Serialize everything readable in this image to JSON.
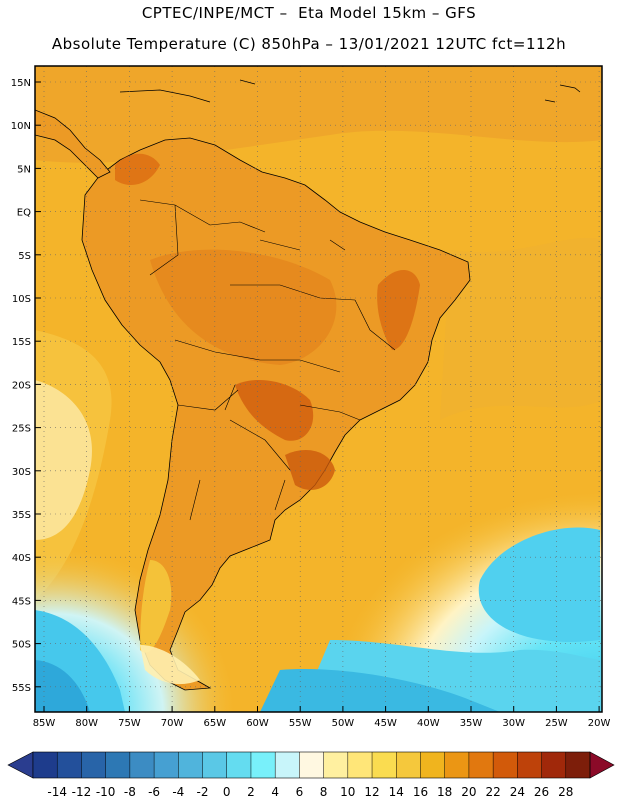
{
  "header": {
    "line1": "CPTEC/INPE/MCT –  Eta Model 15km – GFS",
    "line2": "Absolute Temperature (C) 850hPa – 13/01/2021 12UTC fct=112h"
  },
  "axes": {
    "lat_labels": [
      "15N",
      "10N",
      "5N",
      "EQ",
      "5S",
      "10S",
      "15S",
      "20S",
      "25S",
      "30S",
      "35S",
      "40S",
      "45S",
      "50S",
      "55S"
    ],
    "lon_labels": [
      "85W",
      "80W",
      "75W",
      "70W",
      "65W",
      "60W",
      "55W",
      "50W",
      "45W",
      "40W",
      "35W",
      "30W",
      "25W",
      "20W"
    ]
  },
  "colorbar": {
    "labels": [
      "-14",
      "-12",
      "-10",
      "-8",
      "-6",
      "-4",
      "-2",
      "0",
      "2",
      "4",
      "6",
      "8",
      "10",
      "12",
      "14",
      "16",
      "18",
      "20",
      "22",
      "24",
      "26",
      "28"
    ],
    "colors": [
      "#1e3c8c",
      "#23509b",
      "#2864a8",
      "#2d78b4",
      "#3c8cc3",
      "#46a0d2",
      "#50b4dc",
      "#5ac8e6",
      "#64dcf0",
      "#78f0fa",
      "#c8f5fa",
      "#fff8e1",
      "#fff0a0",
      "#ffe678",
      "#fadc50",
      "#f5c83c",
      "#f0b41e",
      "#eb9614",
      "#e1780f",
      "#d25a0a",
      "#be420a",
      "#a0280a",
      "#7d1e0a"
    ],
    "low_arrow": "#2a3d8f",
    "high_arrow": "#8b0a28"
  },
  "map": {
    "ocean_color": "#f5b62a",
    "land_color": "#ec9a25",
    "border_color": "#000000"
  }
}
